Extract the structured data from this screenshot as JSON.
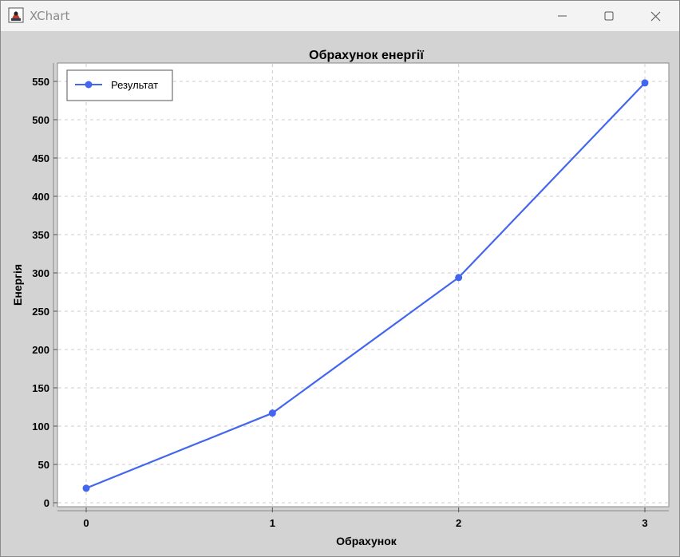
{
  "window": {
    "title": "XChart",
    "app_icon": "java-duke-icon",
    "controls": [
      "minimize-icon",
      "maximize-icon",
      "close-icon"
    ]
  },
  "chart_data": {
    "type": "line",
    "title": "Обрахунок енергії",
    "xlabel": "Обрахунок",
    "ylabel": "Енергія",
    "x": [
      0,
      1,
      2,
      3
    ],
    "series": [
      {
        "name": "Результат",
        "values": [
          19,
          117,
          294,
          548
        ],
        "color": "#4466ee"
      }
    ],
    "xticks": [
      "0",
      "1",
      "2",
      "3"
    ],
    "yticks": [
      "0",
      "50",
      "100",
      "150",
      "200",
      "250",
      "300",
      "350",
      "400",
      "450",
      "500",
      "550"
    ],
    "ylim": [
      0,
      550
    ],
    "grid": true,
    "legend": "top-left"
  }
}
